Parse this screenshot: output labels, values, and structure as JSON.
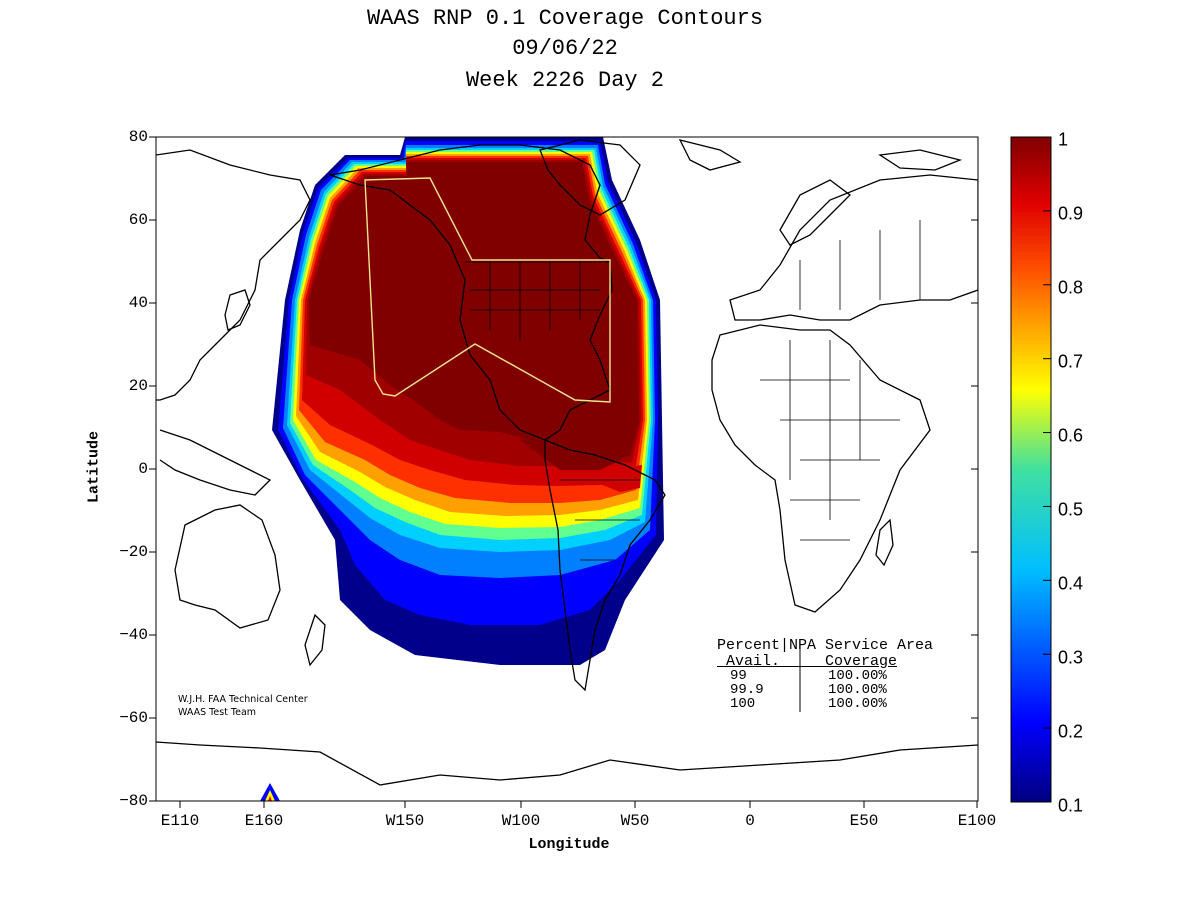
{
  "title": {
    "line1": "WAAS RNP 0.1 Coverage Contours",
    "line2": "09/06/22",
    "line3": "Week 2226 Day 2"
  },
  "axes": {
    "xlabel": "Longitude",
    "ylabel": "Latitude",
    "x_ticks": [
      "E110",
      "E160",
      "W150",
      "W100",
      "W50",
      "0",
      "E50",
      "E100"
    ],
    "y_ticks": [
      "80",
      "60",
      "40",
      "20",
      "0",
      "−20",
      "−40",
      "−60",
      "−80"
    ]
  },
  "colorbar": {
    "ticks": [
      "1",
      "0.9",
      "0.8",
      "0.7",
      "0.6",
      "0.5",
      "0.4",
      "0.3",
      "0.2",
      "0.1"
    ],
    "range": [
      0.1,
      1
    ],
    "colormap": "jet"
  },
  "credit": {
    "line1": "W.J.H. FAA Technical Center",
    "line2": "WAAS Test Team"
  },
  "coverage_table": {
    "header1": "Percent|NPA Service Area",
    "header2": " Avail.     Coverage",
    "rows": [
      {
        "avail": "99",
        "coverage": "100.00%"
      },
      {
        "avail": "99.9",
        "coverage": "100.00%"
      },
      {
        "avail": "100",
        "coverage": "100.00%"
      }
    ]
  },
  "colors": {
    "dark_red": "#800000",
    "service_area_outline": "#f0e68c"
  }
}
